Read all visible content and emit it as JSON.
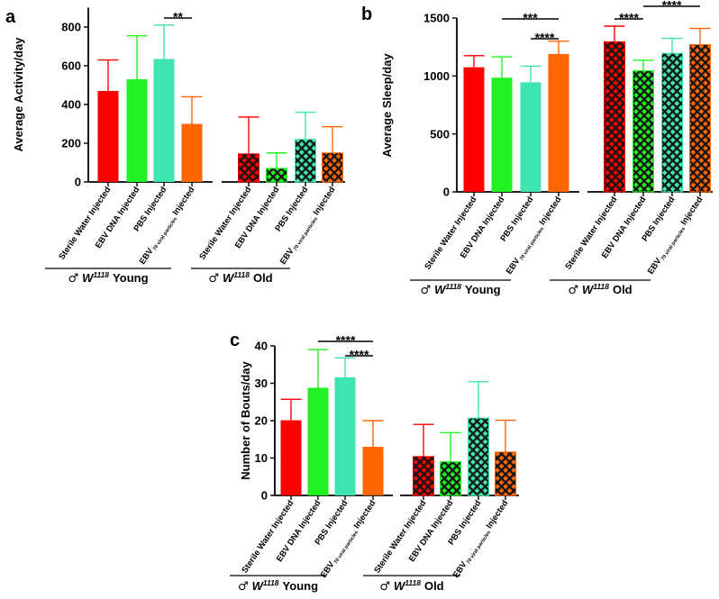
{
  "chart_data": [
    {
      "panel_label": "a",
      "type": "bar",
      "ylabel": "Average Activity/day",
      "ylim": [
        0,
        900
      ],
      "yticks": [
        0,
        200,
        400,
        600,
        800
      ],
      "grid": false,
      "categories": [
        {
          "text": "Sterile Water Injected",
          "color": "#FF0000"
        },
        {
          "text": "EBV DNA Injected",
          "color": "#21F221"
        },
        {
          "text": "PBS Injected",
          "color": "#3FE5B0"
        },
        {
          "text": "EBV",
          "sub": "70 viral particles",
          "tail": "Injected",
          "color": "#FF6600"
        }
      ],
      "groups": [
        {
          "sex_symbol": "♂",
          "strain": "W",
          "strain_sup": "1118",
          "name": "Young",
          "hatched": false,
          "values": [
            470,
            530,
            635,
            300
          ],
          "error_up": [
            160,
            225,
            175,
            140
          ]
        },
        {
          "sex_symbol": "♂",
          "strain": "W",
          "strain_sup": "1118",
          "name": "Old",
          "hatched": true,
          "values": [
            145,
            70,
            220,
            150
          ],
          "error_up": [
            190,
            80,
            140,
            135
          ]
        }
      ],
      "significance": [
        {
          "group": 0,
          "from": 2,
          "to": 3,
          "label": "**"
        }
      ]
    },
    {
      "panel_label": "b",
      "type": "bar",
      "ylabel": "Average Sleep/day",
      "ylim": [
        0,
        1500
      ],
      "yticks": [
        0,
        500,
        1000,
        1500
      ],
      "grid": false,
      "categories": [
        {
          "text": "Sterile Water Injected",
          "color": "#FF0000"
        },
        {
          "text": "EBV DNA Injected",
          "color": "#21F221"
        },
        {
          "text": "PBS Injected",
          "color": "#3FE5B0"
        },
        {
          "text": "EBV",
          "sub": "70 viral particles",
          "tail": "Injected",
          "color": "#FF6600"
        }
      ],
      "groups": [
        {
          "sex_symbol": "♂",
          "strain": "W",
          "strain_sup": "1118",
          "name": "Young",
          "hatched": false,
          "values": [
            1075,
            985,
            945,
            1190
          ],
          "error_up": [
            100,
            180,
            140,
            110
          ]
        },
        {
          "sex_symbol": "♂",
          "strain": "W",
          "strain_sup": "1118",
          "name": "Old",
          "hatched": true,
          "values": [
            1295,
            1045,
            1195,
            1270
          ],
          "error_up": [
            135,
            90,
            130,
            140
          ]
        }
      ],
      "significance": [
        {
          "group": 0,
          "from": 1,
          "to": 3,
          "label": "***"
        },
        {
          "group": 0,
          "from": 2,
          "to": 3,
          "label": "****"
        },
        {
          "group": 1,
          "from": 0,
          "to": 1,
          "label": "****"
        },
        {
          "group": 1,
          "from": 1,
          "to": 3,
          "label": "****"
        }
      ]
    },
    {
      "panel_label": "c",
      "type": "bar",
      "ylabel": "Number of Bouts/day",
      "ylim": [
        0,
        40
      ],
      "yticks": [
        0,
        10,
        20,
        30,
        40
      ],
      "grid": false,
      "categories": [
        {
          "text": "Sterile Water Injected",
          "color": "#FF0000"
        },
        {
          "text": "EBV DNA Injected",
          "color": "#21F221"
        },
        {
          "text": "PBS Injected",
          "color": "#3FE5B0"
        },
        {
          "text": "EBV",
          "sub": "70 viral particles",
          "tail": "Injected",
          "color": "#FF6600"
        }
      ],
      "groups": [
        {
          "sex_symbol": "♂",
          "strain": "W",
          "strain_sup": "1118",
          "name": "Young",
          "hatched": false,
          "values": [
            20.1,
            28.8,
            31.6,
            13.0
          ],
          "error_up": [
            5.6,
            10.2,
            5.2,
            7.0
          ]
        },
        {
          "sex_symbol": "♂",
          "strain": "W",
          "strain_sup": "1118",
          "name": "Old",
          "hatched": true,
          "values": [
            10.4,
            9.0,
            20.7,
            11.6
          ],
          "error_up": [
            8.6,
            7.8,
            9.7,
            8.5
          ]
        }
      ],
      "significance": [
        {
          "group": 0,
          "from": 1,
          "to": 3,
          "label": "****"
        },
        {
          "group": 0,
          "from": 2,
          "to": 3,
          "label": "****"
        }
      ]
    }
  ]
}
